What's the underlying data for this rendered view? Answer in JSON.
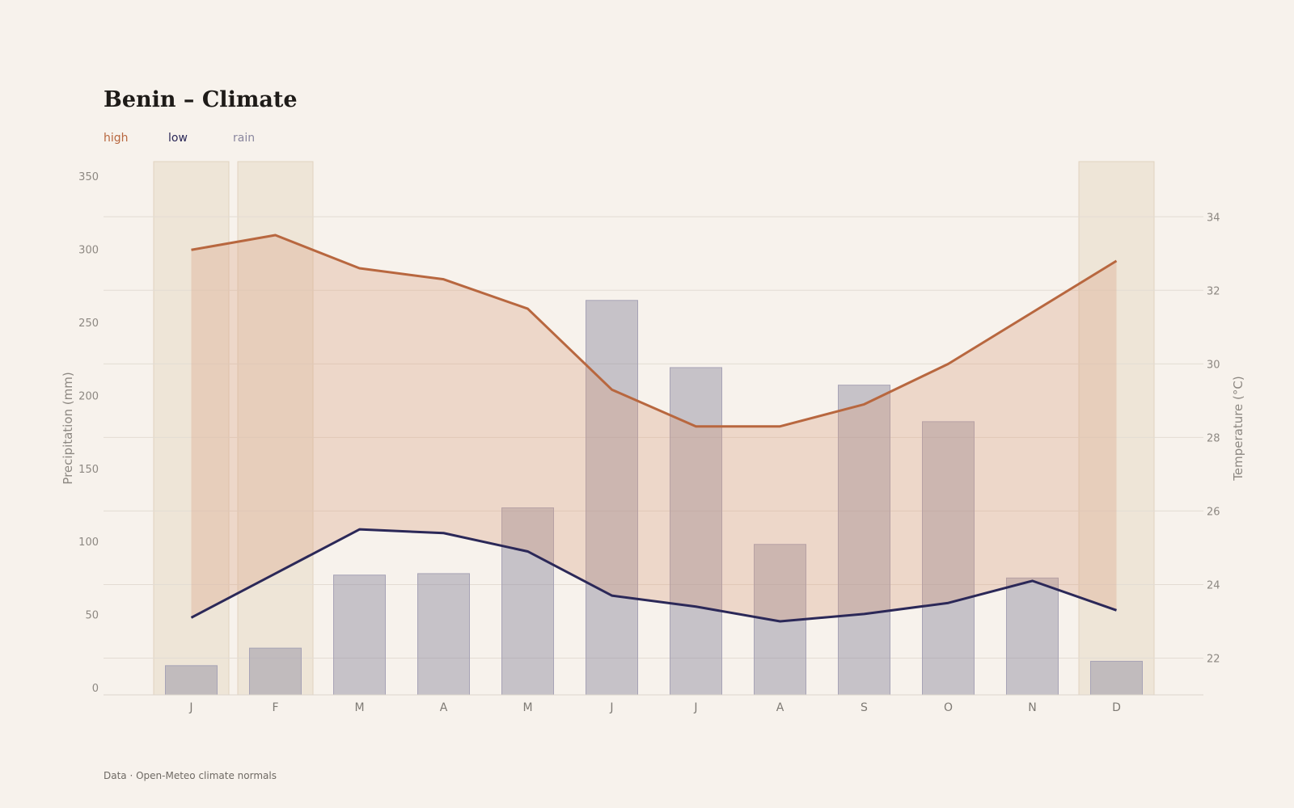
{
  "chart_data": {
    "type": "bar",
    "title": "Benin – Climate",
    "source": "Data · Open-Meteo climate normals",
    "categories": [
      "J",
      "F",
      "M",
      "A",
      "M",
      "J",
      "J",
      "A",
      "S",
      "O",
      "N",
      "D"
    ],
    "legend": [
      "high",
      "low",
      "rain"
    ],
    "dry_season_months": [
      0,
      1,
      11
    ],
    "series": [
      {
        "name": "high",
        "type": "line",
        "axis": "right",
        "color": "#b8673f",
        "values": [
          33.1,
          33.5,
          32.6,
          32.3,
          31.5,
          29.3,
          28.3,
          28.3,
          28.9,
          30.0,
          31.4,
          32.8
        ]
      },
      {
        "name": "low",
        "type": "line",
        "axis": "right",
        "color": "#2b2858",
        "values": [
          23.1,
          24.3,
          25.5,
          25.4,
          24.9,
          23.7,
          23.4,
          23.0,
          23.2,
          23.5,
          24.1,
          23.3
        ]
      },
      {
        "name": "rain",
        "type": "bar",
        "axis": "left",
        "color": "#8a879e",
        "values": [
          20,
          32,
          82,
          83,
          128,
          270,
          224,
          103,
          212,
          187,
          80,
          23
        ]
      }
    ],
    "ylabel": "Precipitation (mm)",
    "y2label": "Temperature (°C)",
    "ylim": [
      0,
      365
    ],
    "y2lim": [
      21.0,
      35.5
    ],
    "yticks": [
      0,
      50,
      100,
      150,
      200,
      250,
      300,
      350
    ],
    "y2ticks": [
      22,
      24,
      26,
      28,
      30,
      32,
      34
    ],
    "grid": true,
    "legend_position": "top-left"
  }
}
